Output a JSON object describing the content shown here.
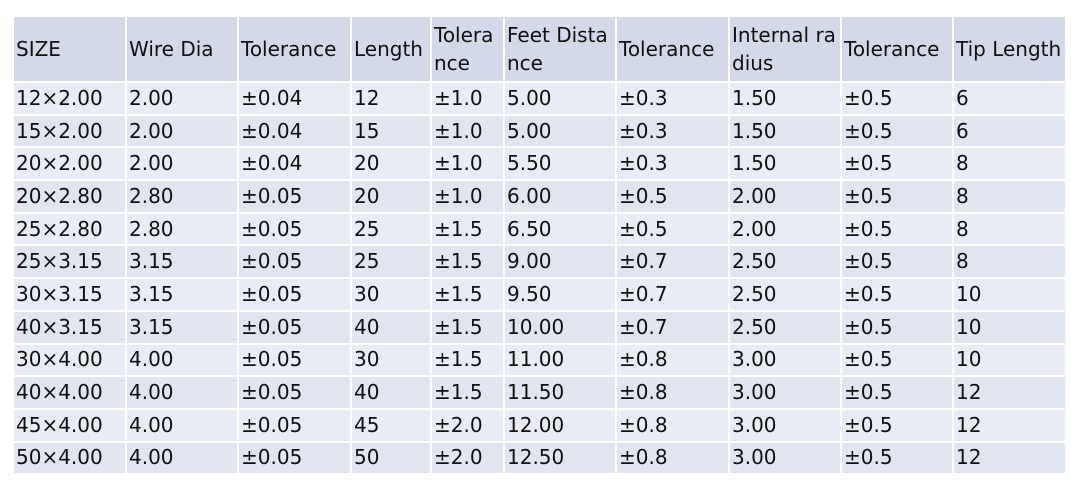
{
  "table": {
    "header": [
      "SIZE",
      "Wire Dia",
      "Tolerance",
      "Length",
      "Tolerance",
      "Feet Distance",
      "Tolerance",
      "Internal radius",
      "Tolerance",
      "Tip Length"
    ],
    "rows": [
      [
        "12×2.00",
        "2.00",
        "±0.04",
        "12",
        "±1.0",
        "5.00",
        "±0.3",
        "1.50",
        "±0.5",
        "6"
      ],
      [
        "15×2.00",
        "2.00",
        "±0.04",
        "15",
        "±1.0",
        "5.00",
        "±0.3",
        "1.50",
        "±0.5",
        "6"
      ],
      [
        "20×2.00",
        "2.00",
        "±0.04",
        "20",
        "±1.0",
        "5.50",
        "±0.3",
        "1.50",
        "±0.5",
        "8"
      ],
      [
        "20×2.80",
        "2.80",
        "±0.05",
        "20",
        "±1.0",
        "6.00",
        "±0.5",
        "2.00",
        "±0.5",
        "8"
      ],
      [
        "25×2.80",
        "2.80",
        "±0.05",
        "25",
        "±1.5",
        "6.50",
        "±0.5",
        "2.00",
        "±0.5",
        "8"
      ],
      [
        "25×3.15",
        "3.15",
        "±0.05",
        "25",
        "±1.5",
        "9.00",
        "±0.7",
        "2.50",
        "±0.5",
        "8"
      ],
      [
        "30×3.15",
        "3.15",
        "±0.05",
        "30",
        "±1.5",
        "9.50",
        "±0.7",
        "2.50",
        "±0.5",
        "10"
      ],
      [
        "40×3.15",
        "3.15",
        "±0.05",
        "40",
        "±1.5",
        "10.00",
        "±0.7",
        "2.50",
        "±0.5",
        "10"
      ],
      [
        "30×4.00",
        "4.00",
        "±0.05",
        "30",
        "±1.5",
        "11.00",
        "±0.8",
        "3.00",
        "±0.5",
        "10"
      ],
      [
        "40×4.00",
        "4.00",
        "±0.05",
        "40",
        "±1.5",
        "11.50",
        "±0.8",
        "3.00",
        "±0.5",
        "12"
      ],
      [
        "45×4.00",
        "4.00",
        "±0.05",
        "45",
        "±2.0",
        "12.00",
        "±0.8",
        "3.00",
        "±0.5",
        "12"
      ],
      [
        "50×4.00",
        "4.00",
        "±0.05",
        "50",
        "±2.0",
        "12.50",
        "±0.8",
        "3.00",
        "±0.5",
        "12"
      ]
    ]
  }
}
